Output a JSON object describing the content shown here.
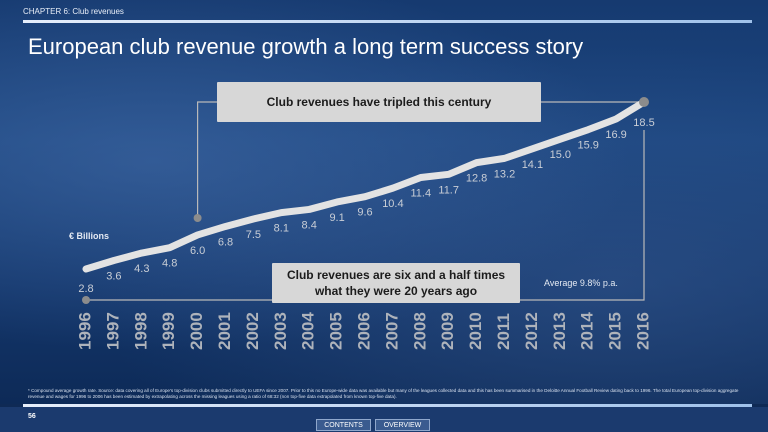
{
  "header": {
    "chapter": "CHAPTER 6: Club revenues",
    "title": "European club revenue growth a long term success story"
  },
  "callouts": {
    "top": "Club revenues have tripled this century",
    "middle_line1": "Club revenues are six and a half times",
    "middle_line2": "what they were 20 years ago"
  },
  "unit_label": "€ Billions",
  "cagr_label": "Average 9.8% p.a.",
  "footnote": "* Compound average growth rate. Source: data covering all of Europe's top-division clubs submitted directly to UEFA since 2007. Prior to this no Europe-wide data was available but many of the leagues collected data and this has been summarised in the Deloitte Annual Football Review dating back to 1996. The total European top-division aggregate revenue and wages for 1996 to 2006 has been estimated by extrapolating across the missing leagues using a ratio of 68:32 (non top-five data extrapolated from known top-five data).",
  "footer": {
    "page_number": "56",
    "contents_label": "CONTENTS",
    "overview_label": "OVERVIEW"
  },
  "colors": {
    "line": "#e3e3e3",
    "label": "#c9ced6",
    "axis_label": "#aeb3bb",
    "marker": "#8c8c8c",
    "connector": "#b9b9b9"
  },
  "chart_data": {
    "type": "line",
    "x": [
      "1996",
      "1997",
      "1998",
      "1999",
      "2000",
      "2001",
      "2002",
      "2003",
      "2004",
      "2005",
      "2006",
      "2007",
      "2008",
      "2009",
      "2010",
      "2011",
      "2012",
      "2013",
      "2014",
      "2015",
      "2016"
    ],
    "values": [
      2.8,
      3.6,
      4.3,
      4.8,
      6.0,
      6.8,
      7.5,
      8.1,
      8.4,
      9.1,
      9.6,
      10.4,
      11.4,
      11.7,
      12.8,
      13.2,
      14.1,
      15.0,
      15.9,
      16.9,
      18.5
    ],
    "value_labels": [
      "2.8",
      "3.6",
      "4.3",
      "4.8",
      "6.0",
      "6.8",
      "7.5",
      "8.1",
      "8.4",
      "9.1",
      "9.6",
      "10.4",
      "11.4",
      "11.7",
      "12.8",
      "13.2",
      "14.1",
      "15.0",
      "15.9",
      "16.9",
      "18.5"
    ],
    "ylabel": "€ Billions",
    "ylim": [
      2.8,
      18.5
    ],
    "grid": false
  }
}
